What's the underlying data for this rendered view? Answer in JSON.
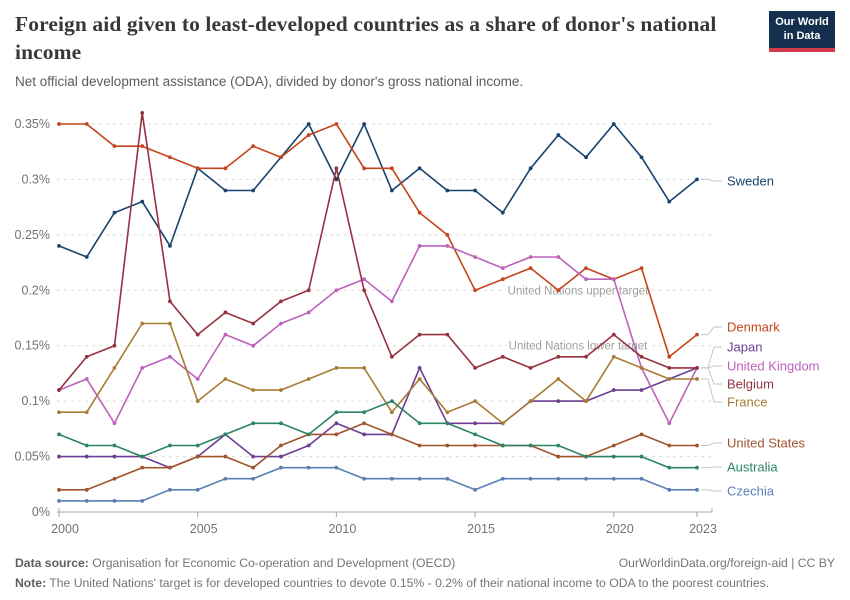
{
  "header": {
    "title": "Foreign aid given to least-developed countries as a share of donor's national income",
    "subtitle": "Net official development assistance (ODA), divided by donor's gross national income.",
    "logo": {
      "line1": "Our World",
      "line2": "in Data"
    }
  },
  "chart_data": {
    "type": "line",
    "title": "Foreign aid given to least-developed countries as a share of donor's national income",
    "x": [
      2000,
      2001,
      2002,
      2003,
      2004,
      2005,
      2006,
      2007,
      2008,
      2009,
      2010,
      2011,
      2012,
      2013,
      2014,
      2015,
      2016,
      2017,
      2018,
      2019,
      2020,
      2021,
      2022,
      2023
    ],
    "xticks": [
      2000,
      2005,
      2010,
      2015,
      2020,
      2023
    ],
    "yticks": [
      {
        "v": 0,
        "label": "0%"
      },
      {
        "v": 0.05,
        "label": "0.05%"
      },
      {
        "v": 0.1,
        "label": "0.1%"
      },
      {
        "v": 0.15,
        "label": "0.15%"
      },
      {
        "v": 0.2,
        "label": "0.2%"
      },
      {
        "v": 0.25,
        "label": "0.25%"
      },
      {
        "v": 0.3,
        "label": "0.3%"
      },
      {
        "v": 0.35,
        "label": "0.35%"
      }
    ],
    "ylim": [
      0,
      0.36
    ],
    "xlim": [
      2000,
      2023
    ],
    "grid": "horizontal-dashed",
    "legend_position": "right-of-line-ends",
    "annotations": [
      {
        "text": "United Nations upper target",
        "y": 0.2
      },
      {
        "text": "United Nations lower target",
        "y": 0.15
      }
    ],
    "series": [
      {
        "name": "Sweden",
        "color": "#18436f",
        "values": [
          0.24,
          0.23,
          0.27,
          0.28,
          0.24,
          0.31,
          0.29,
          0.29,
          0.32,
          0.35,
          0.3,
          0.35,
          0.29,
          0.31,
          0.29,
          0.29,
          0.27,
          0.31,
          0.34,
          0.32,
          0.35,
          0.32,
          0.28,
          0.3
        ]
      },
      {
        "name": "Denmark",
        "color": "#c4451c",
        "values": [
          0.35,
          0.35,
          0.33,
          0.33,
          0.32,
          0.31,
          0.31,
          0.33,
          0.32,
          0.34,
          0.35,
          0.31,
          0.31,
          0.27,
          0.25,
          0.2,
          0.21,
          0.22,
          0.2,
          0.22,
          0.21,
          0.22,
          0.14,
          0.16
        ]
      },
      {
        "name": "Japan",
        "color": "#6d3e91",
        "values": [
          0.05,
          0.05,
          0.05,
          0.05,
          0.04,
          0.05,
          0.07,
          0.05,
          0.05,
          0.06,
          0.08,
          0.07,
          0.07,
          0.13,
          0.08,
          0.08,
          0.08,
          0.1,
          0.1,
          0.1,
          0.11,
          0.11,
          0.12,
          0.13
        ]
      },
      {
        "name": "United Kingdom",
        "color": "#bc62bc",
        "values": [
          0.11,
          0.12,
          0.08,
          0.13,
          0.14,
          0.12,
          0.16,
          0.15,
          0.17,
          0.18,
          0.2,
          0.21,
          0.19,
          0.24,
          0.24,
          0.23,
          0.22,
          0.23,
          0.23,
          0.21,
          0.21,
          0.13,
          0.08,
          0.13
        ]
      },
      {
        "name": "Belgium",
        "color": "#96323f",
        "values": [
          0.11,
          0.14,
          0.15,
          0.36,
          0.19,
          0.16,
          0.18,
          0.17,
          0.19,
          0.2,
          0.31,
          0.2,
          0.14,
          0.16,
          0.16,
          0.13,
          0.14,
          0.13,
          0.14,
          0.14,
          0.16,
          0.14,
          0.13,
          0.13
        ]
      },
      {
        "name": "France",
        "color": "#a97c34",
        "values": [
          0.09,
          0.09,
          0.13,
          0.17,
          0.17,
          0.1,
          0.12,
          0.11,
          0.11,
          0.12,
          0.13,
          0.13,
          0.09,
          0.12,
          0.09,
          0.1,
          0.08,
          0.1,
          0.12,
          0.1,
          0.14,
          0.13,
          0.12,
          0.12
        ]
      },
      {
        "name": "United States",
        "color": "#a0542c",
        "values": [
          0.02,
          0.02,
          0.03,
          0.04,
          0.04,
          0.05,
          0.05,
          0.04,
          0.06,
          0.07,
          0.07,
          0.08,
          0.07,
          0.06,
          0.06,
          0.06,
          0.06,
          0.06,
          0.05,
          0.05,
          0.06,
          0.07,
          0.06,
          0.06
        ]
      },
      {
        "name": "Australia",
        "color": "#2c8465",
        "values": [
          0.07,
          0.06,
          0.06,
          0.05,
          0.06,
          0.06,
          0.07,
          0.08,
          0.08,
          0.07,
          0.09,
          0.09,
          0.1,
          0.08,
          0.08,
          0.07,
          0.06,
          0.06,
          0.06,
          0.05,
          0.05,
          0.05,
          0.04,
          0.04
        ]
      },
      {
        "name": "Czechia",
        "color": "#5b7fb5",
        "values": [
          0.01,
          0.01,
          0.01,
          0.01,
          0.02,
          0.02,
          0.03,
          0.03,
          0.04,
          0.04,
          0.04,
          0.03,
          0.03,
          0.03,
          0.03,
          0.02,
          0.03,
          0.03,
          0.03,
          0.03,
          0.03,
          0.03,
          0.02,
          0.02
        ]
      }
    ]
  },
  "footer": {
    "source_label": "Data source:",
    "source": "Organisation for Economic Co-operation and Development (OECD)",
    "link": "OurWorldinData.org/foreign-aid | CC BY",
    "note_label": "Note:",
    "note": "The United Nations' target is for developed countries to devote 0.15% - 0.2% of their national income to ODA to the poorest countries."
  }
}
